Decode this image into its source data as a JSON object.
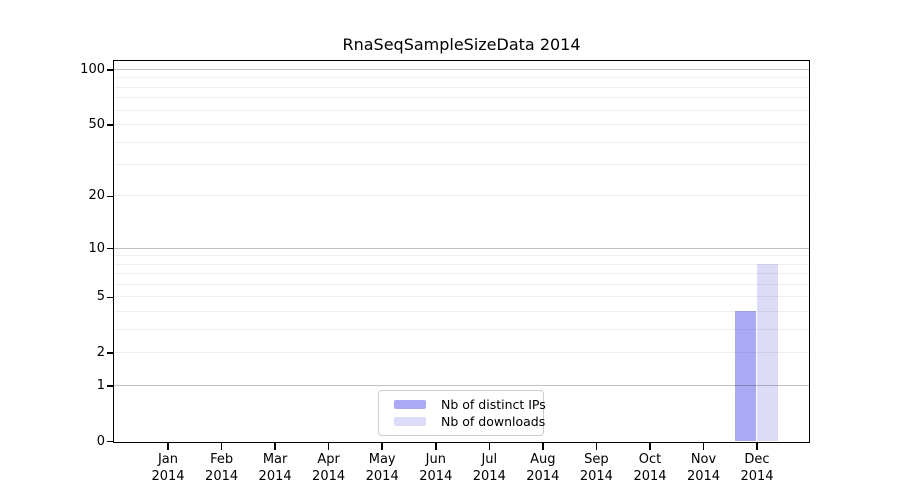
{
  "figure": {
    "title": "RnaSeqSampleSizeData 2014"
  },
  "chart_data": {
    "type": "bar",
    "title": "RnaSeqSampleSizeData 2014",
    "x": {
      "months": [
        "Jan",
        "Feb",
        "Mar",
        "Apr",
        "May",
        "Jun",
        "Jul",
        "Aug",
        "Sep",
        "Oct",
        "Nov",
        "Dec"
      ],
      "year": "2014"
    },
    "categories": [
      "Jan 2014",
      "Feb 2014",
      "Mar 2014",
      "Apr 2014",
      "May 2014",
      "Jun 2014",
      "Jul 2014",
      "Aug 2014",
      "Sep 2014",
      "Oct 2014",
      "Nov 2014",
      "Dec 2014"
    ],
    "series": [
      {
        "name": "Nb of distinct IPs",
        "color": "#aaaaf4",
        "values": [
          0,
          0,
          0,
          0,
          0,
          0,
          0,
          0,
          0,
          0,
          0,
          4
        ]
      },
      {
        "name": "Nb of downloads",
        "color": "#dcdcf9",
        "values": [
          0,
          0,
          0,
          0,
          0,
          0,
          0,
          0,
          0,
          0,
          0,
          8
        ]
      }
    ],
    "y_axis": {
      "scale": "log1p",
      "tick_labels": [
        0,
        1,
        2,
        5,
        10,
        20,
        50,
        100
      ],
      "major_gridlines": [
        1,
        10,
        100
      ],
      "minor_gridlines": [
        2,
        3,
        4,
        5,
        6,
        7,
        8,
        9,
        20,
        30,
        40,
        50,
        60,
        70,
        80,
        90
      ],
      "top_value": 113,
      "ylim": [
        0,
        113
      ]
    },
    "legend": {
      "position": "lower center inside",
      "entries": [
        "Nb of distinct IPs",
        "Nb of downloads"
      ]
    },
    "colors": {
      "background": "#ffffff",
      "spine": "#000000",
      "text": "#000000",
      "major_grid": "#c3c3c3",
      "minor_grid": "#efefef",
      "legend_border": "#cccccc"
    },
    "grid": true
  }
}
